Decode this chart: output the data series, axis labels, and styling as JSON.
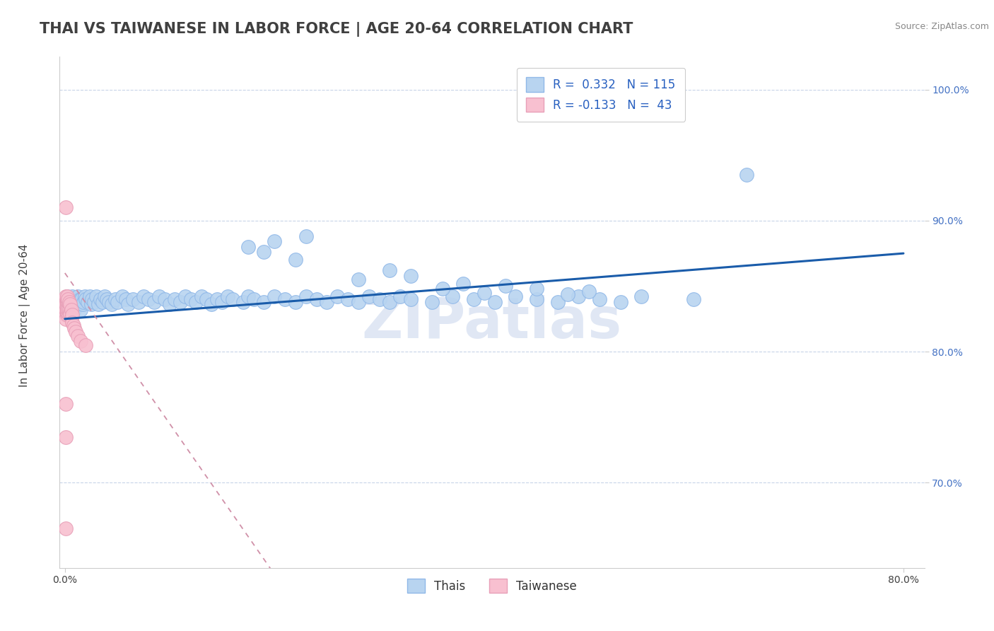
{
  "title": "THAI VS TAIWANESE IN LABOR FORCE | AGE 20-64 CORRELATION CHART",
  "source_text": "Source: ZipAtlas.com",
  "ylabel": "In Labor Force | Age 20-64",
  "xlim": [
    -0.005,
    0.82
  ],
  "ylim": [
    0.635,
    1.025
  ],
  "xticks": [
    0.0,
    0.8
  ],
  "xticklabels": [
    "0.0%",
    "80.0%"
  ],
  "ytick_positions": [
    0.7,
    0.8,
    0.9,
    1.0
  ],
  "ytick_labels": [
    "70.0%",
    "80.0%",
    "90.0%",
    "100.0%"
  ],
  "blue_color": "#b8d4f0",
  "blue_edge_color": "#90b8e8",
  "pink_color": "#f8c0d0",
  "pink_edge_color": "#e8a0b8",
  "trend_blue_color": "#1a5caa",
  "trend_pink_color": "#d090a8",
  "watermark_color": "#ccd8ee",
  "legend_text_color": "#2860c0",
  "title_color": "#404040",
  "source_color": "#888888",
  "ylabel_color": "#404040",
  "ytick_color": "#4472c4",
  "xtick_color": "#404040",
  "background_color": "#ffffff",
  "grid_color": "#c8d4e8",
  "R_blue": 0.332,
  "N_blue": 115,
  "R_pink": -0.133,
  "N_pink": 43,
  "title_fontsize": 15,
  "axis_label_fontsize": 11,
  "tick_fontsize": 10,
  "legend_fontsize": 12,
  "watermark": "ZIPatlas",
  "thai_x": [
    0.001,
    0.001,
    0.001,
    0.002,
    0.002,
    0.002,
    0.003,
    0.003,
    0.004,
    0.004,
    0.005,
    0.005,
    0.006,
    0.006,
    0.007,
    0.007,
    0.008,
    0.009,
    0.01,
    0.01,
    0.011,
    0.012,
    0.013,
    0.014,
    0.015,
    0.015,
    0.016,
    0.017,
    0.018,
    0.019,
    0.02,
    0.022,
    0.024,
    0.025,
    0.026,
    0.028,
    0.03,
    0.032,
    0.034,
    0.036,
    0.038,
    0.04,
    0.042,
    0.045,
    0.048,
    0.05,
    0.055,
    0.058,
    0.06,
    0.065,
    0.07,
    0.075,
    0.08,
    0.085,
    0.09,
    0.095,
    0.1,
    0.105,
    0.11,
    0.115,
    0.12,
    0.125,
    0.13,
    0.135,
    0.14,
    0.145,
    0.15,
    0.155,
    0.16,
    0.17,
    0.175,
    0.18,
    0.19,
    0.2,
    0.21,
    0.22,
    0.23,
    0.24,
    0.25,
    0.26,
    0.27,
    0.28,
    0.29,
    0.3,
    0.31,
    0.32,
    0.33,
    0.35,
    0.37,
    0.39,
    0.41,
    0.43,
    0.45,
    0.47,
    0.49,
    0.51,
    0.53,
    0.55,
    0.6,
    0.65,
    0.175,
    0.19,
    0.2,
    0.22,
    0.23,
    0.28,
    0.31,
    0.33,
    0.36,
    0.38,
    0.4,
    0.42,
    0.45,
    0.48,
    0.5
  ],
  "thai_y": [
    0.84,
    0.835,
    0.828,
    0.842,
    0.836,
    0.83,
    0.838,
    0.832,
    0.84,
    0.835,
    0.828,
    0.835,
    0.84,
    0.832,
    0.835,
    0.842,
    0.838,
    0.832,
    0.84,
    0.835,
    0.838,
    0.842,
    0.836,
    0.84,
    0.838,
    0.832,
    0.84,
    0.836,
    0.838,
    0.842,
    0.84,
    0.838,
    0.842,
    0.836,
    0.84,
    0.838,
    0.842,
    0.836,
    0.84,
    0.838,
    0.842,
    0.84,
    0.838,
    0.836,
    0.84,
    0.838,
    0.842,
    0.84,
    0.836,
    0.84,
    0.838,
    0.842,
    0.84,
    0.838,
    0.842,
    0.84,
    0.836,
    0.84,
    0.838,
    0.842,
    0.84,
    0.838,
    0.842,
    0.84,
    0.836,
    0.84,
    0.838,
    0.842,
    0.84,
    0.838,
    0.842,
    0.84,
    0.838,
    0.842,
    0.84,
    0.838,
    0.842,
    0.84,
    0.838,
    0.842,
    0.84,
    0.838,
    0.842,
    0.84,
    0.838,
    0.842,
    0.84,
    0.838,
    0.842,
    0.84,
    0.838,
    0.842,
    0.84,
    0.838,
    0.842,
    0.84,
    0.838,
    0.842,
    0.84,
    0.935,
    0.88,
    0.876,
    0.884,
    0.87,
    0.888,
    0.855,
    0.862,
    0.858,
    0.848,
    0.852,
    0.845,
    0.85,
    0.848,
    0.844,
    0.846
  ],
  "taiwanese_x": [
    0.001,
    0.001,
    0.001,
    0.001,
    0.001,
    0.001,
    0.001,
    0.001,
    0.001,
    0.002,
    0.002,
    0.002,
    0.002,
    0.002,
    0.002,
    0.002,
    0.002,
    0.003,
    0.003,
    0.003,
    0.003,
    0.003,
    0.004,
    0.004,
    0.004,
    0.004,
    0.005,
    0.005,
    0.005,
    0.006,
    0.006,
    0.007,
    0.007,
    0.008,
    0.009,
    0.01,
    0.012,
    0.015,
    0.02,
    0.001,
    0.001,
    0.001,
    0.001
  ],
  "taiwanese_y": [
    0.84,
    0.835,
    0.83,
    0.828,
    0.832,
    0.838,
    0.836,
    0.825,
    0.842,
    0.838,
    0.832,
    0.836,
    0.84,
    0.828,
    0.834,
    0.83,
    0.842,
    0.836,
    0.83,
    0.838,
    0.832,
    0.84,
    0.836,
    0.83,
    0.838,
    0.832,
    0.836,
    0.83,
    0.828,
    0.832,
    0.826,
    0.828,
    0.822,
    0.82,
    0.818,
    0.815,
    0.812,
    0.808,
    0.805,
    0.91,
    0.76,
    0.735,
    0.665
  ],
  "trend_blue_x0": 0.0,
  "trend_blue_y0": 0.825,
  "trend_blue_x1": 0.8,
  "trend_blue_y1": 0.875,
  "trend_pink_x0": 0.0,
  "trend_pink_y0": 0.86,
  "trend_pink_x1": 0.2,
  "trend_pink_y1": 0.63
}
